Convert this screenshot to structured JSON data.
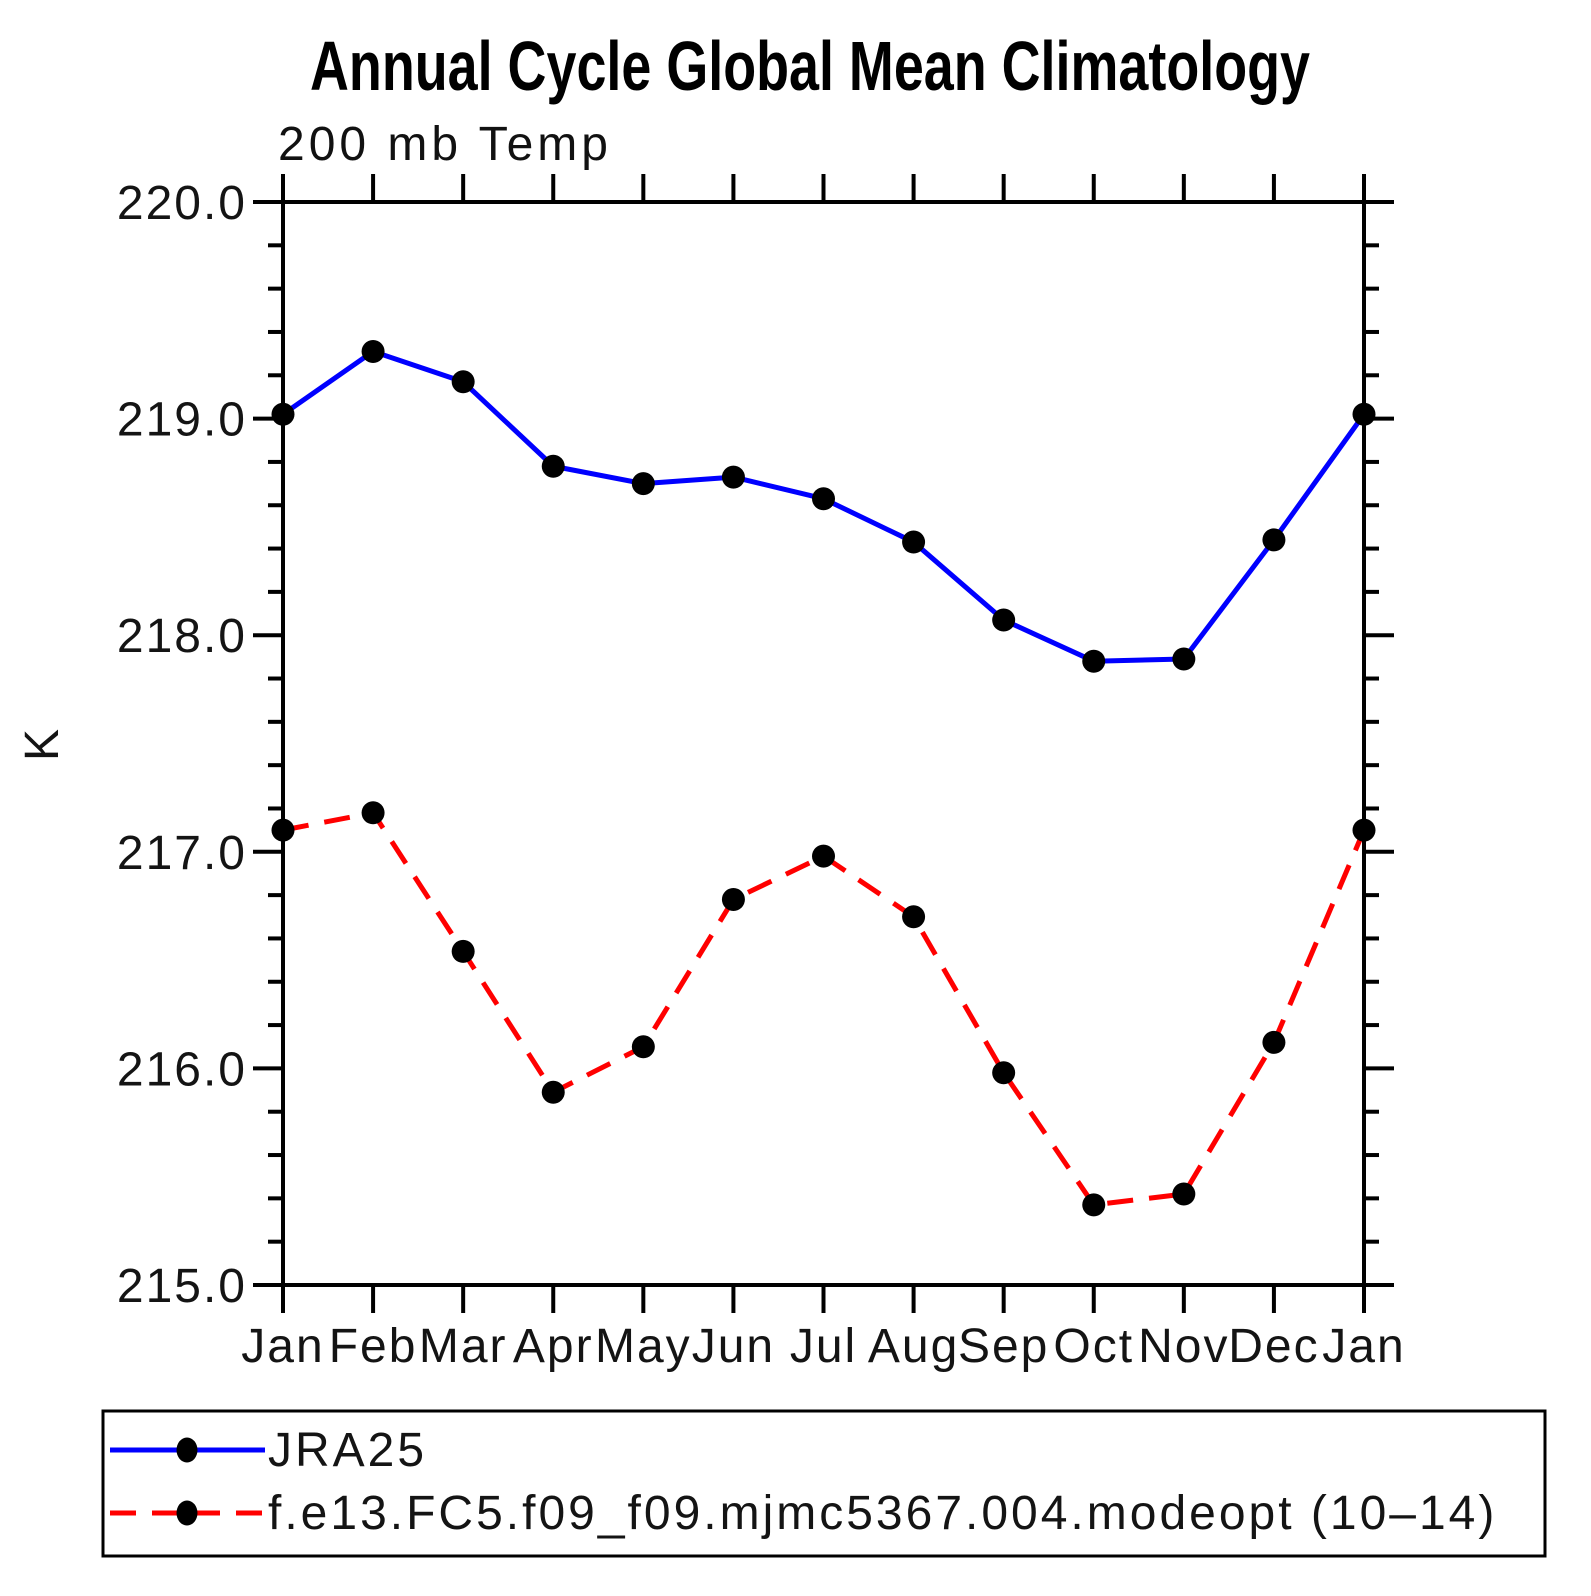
{
  "title": "Annual Cycle Global Mean Climatology",
  "subtitle": "200 mb Temp",
  "ylabel": "K",
  "colors": {
    "axis": "#000000",
    "marker": "#000000",
    "series1": "#0000ff",
    "series2": "#ff0000",
    "background": "#ffffff"
  },
  "legend": {
    "entries": [
      {
        "label": "JRA25",
        "color": "#0000ff",
        "style": "solid"
      },
      {
        "label": "f.e13.FC5.f09_f09.mjmc5367.004.modeopt (10–14)",
        "color": "#ff0000",
        "style": "dashed"
      }
    ]
  },
  "chart_data": {
    "type": "line",
    "title": "Annual Cycle Global Mean Climatology",
    "subtitle": "200 mb Temp",
    "xlabel": "",
    "ylabel": "K",
    "categories": [
      "Jan",
      "Feb",
      "Mar",
      "Apr",
      "May",
      "Jun",
      "Jul",
      "Aug",
      "Sep",
      "Oct",
      "Nov",
      "Dec",
      "Jan"
    ],
    "series": [
      {
        "name": "JRA25",
        "color": "#0000ff",
        "line_style": "solid",
        "marker": "filled-circle",
        "marker_color": "#000000",
        "values": [
          219.02,
          219.31,
          219.17,
          218.78,
          218.7,
          218.73,
          218.63,
          218.43,
          218.07,
          217.88,
          217.89,
          218.44,
          219.02
        ]
      },
      {
        "name": "f.e13.FC5.f09_f09.mjmc5367.004.modeopt (10–14)",
        "color": "#ff0000",
        "line_style": "dashed",
        "marker": "filled-circle",
        "marker_color": "#000000",
        "values": [
          217.1,
          217.18,
          216.54,
          215.89,
          216.1,
          216.78,
          216.98,
          216.7,
          215.98,
          215.37,
          215.42,
          216.12,
          217.1
        ]
      }
    ],
    "ylim": [
      215.0,
      220.0
    ],
    "ytick_major_step": 1.0,
    "ytick_minor_step": 0.2,
    "ytick_format_decimals": 1,
    "grid": false,
    "legend_position": "bottom",
    "ticks_direction": "out"
  }
}
